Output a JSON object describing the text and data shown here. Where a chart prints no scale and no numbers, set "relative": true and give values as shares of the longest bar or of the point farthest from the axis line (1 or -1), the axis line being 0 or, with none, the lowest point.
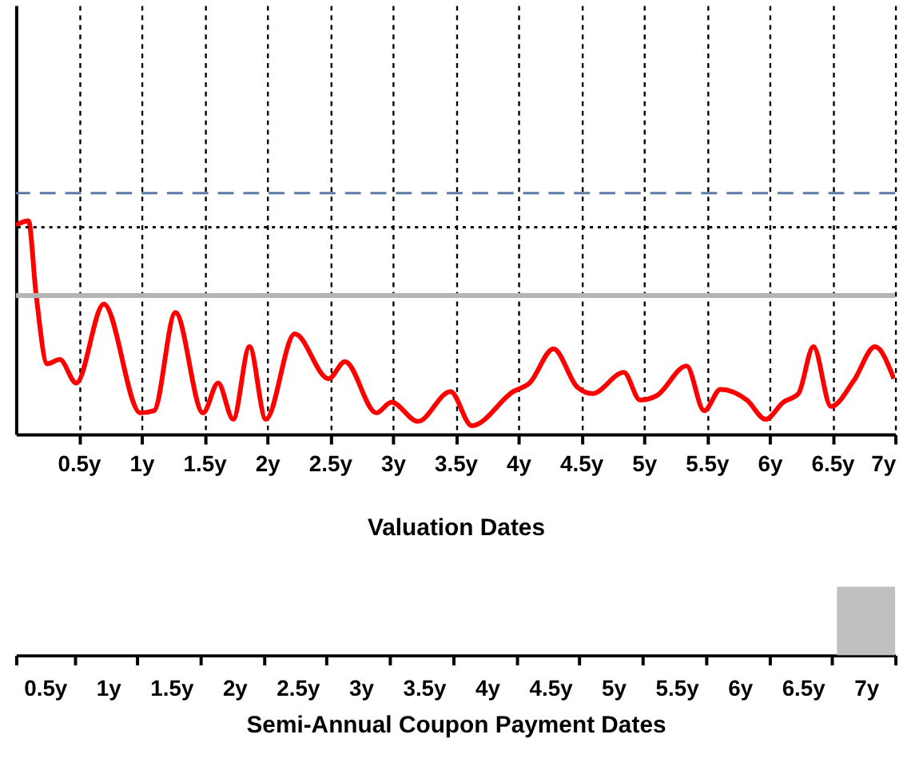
{
  "chart_data": [
    {
      "type": "line",
      "xlabel": "Valuation Dates",
      "relative": true,
      "grid": "x",
      "tick_labels": "x",
      "line_style": "solid",
      "marker": "none",
      "xlim": [
        0,
        7
      ],
      "xticks": [
        {
          "value": 0.5,
          "label": "0.5y"
        },
        {
          "value": 1,
          "label": "1y"
        },
        {
          "value": 1.5,
          "label": "1.5y"
        },
        {
          "value": 2,
          "label": "2y"
        },
        {
          "value": 2.5,
          "label": "2.5y"
        },
        {
          "value": 3,
          "label": "3y"
        },
        {
          "value": 3.5,
          "label": "3.5y"
        },
        {
          "value": 4,
          "label": "4y"
        },
        {
          "value": 4.5,
          "label": "4.5y"
        },
        {
          "value": 5,
          "label": "5y"
        },
        {
          "value": 5.5,
          "label": "5.5y"
        },
        {
          "value": 6,
          "label": "6y"
        },
        {
          "value": 6.5,
          "label": "6.5y"
        },
        {
          "value": 7,
          "label": "7y"
        }
      ],
      "series": [
        {
          "color": "#ff0000",
          "x": [
            0.0,
            0.1,
            0.16,
            0.25,
            0.35,
            0.48,
            0.7,
            0.99,
            1.1,
            1.27,
            1.49,
            1.61,
            1.73,
            1.86,
            1.99,
            2.22,
            2.49,
            2.62,
            2.87,
            2.99,
            3.2,
            3.46,
            3.63,
            3.96,
            4.09,
            4.28,
            4.47,
            4.59,
            4.84,
            4.97,
            5.1,
            5.34,
            5.48,
            5.61,
            5.82,
            5.97,
            6.11,
            6.23,
            6.35,
            6.49,
            6.67,
            6.84,
            6.99
          ],
          "values": [
            0.98,
            1.0,
            0.66,
            0.33,
            0.35,
            0.24,
            0.61,
            0.1,
            0.11,
            0.57,
            0.1,
            0.24,
            0.07,
            0.41,
            0.07,
            0.47,
            0.26,
            0.34,
            0.1,
            0.15,
            0.06,
            0.2,
            0.04,
            0.2,
            0.24,
            0.4,
            0.22,
            0.19,
            0.29,
            0.16,
            0.18,
            0.32,
            0.11,
            0.21,
            0.16,
            0.07,
            0.15,
            0.19,
            0.41,
            0.13,
            0.25,
            0.41,
            0.26
          ]
        }
      ],
      "ref_lines": [
        {
          "axis": "y",
          "value": 1.13,
          "color": "#5b7aa6",
          "line_style": "dashed"
        },
        {
          "axis": "y",
          "value": 0.97,
          "color": "#000000",
          "line_style": "dotted"
        },
        {
          "axis": "y",
          "value": 0.65,
          "color": "#b4b4b4",
          "line_style": "solid"
        }
      ]
    },
    {
      "type": "bar",
      "xlabel": "Semi-Annual  Coupon Payment Dates",
      "relative": true,
      "tick_labels": "x",
      "categories": [
        "0.5y",
        "1y",
        "1.5y",
        "2y",
        "2.5y",
        "3y",
        "3.5y",
        "4y",
        "4.5y",
        "5y",
        "5.5y",
        "6y",
        "6.5y",
        "7y"
      ],
      "series": [
        {
          "color": "#c0c0c0",
          "values": [
            null,
            null,
            null,
            null,
            null,
            null,
            null,
            null,
            null,
            null,
            null,
            null,
            null,
            1
          ]
        }
      ]
    }
  ]
}
